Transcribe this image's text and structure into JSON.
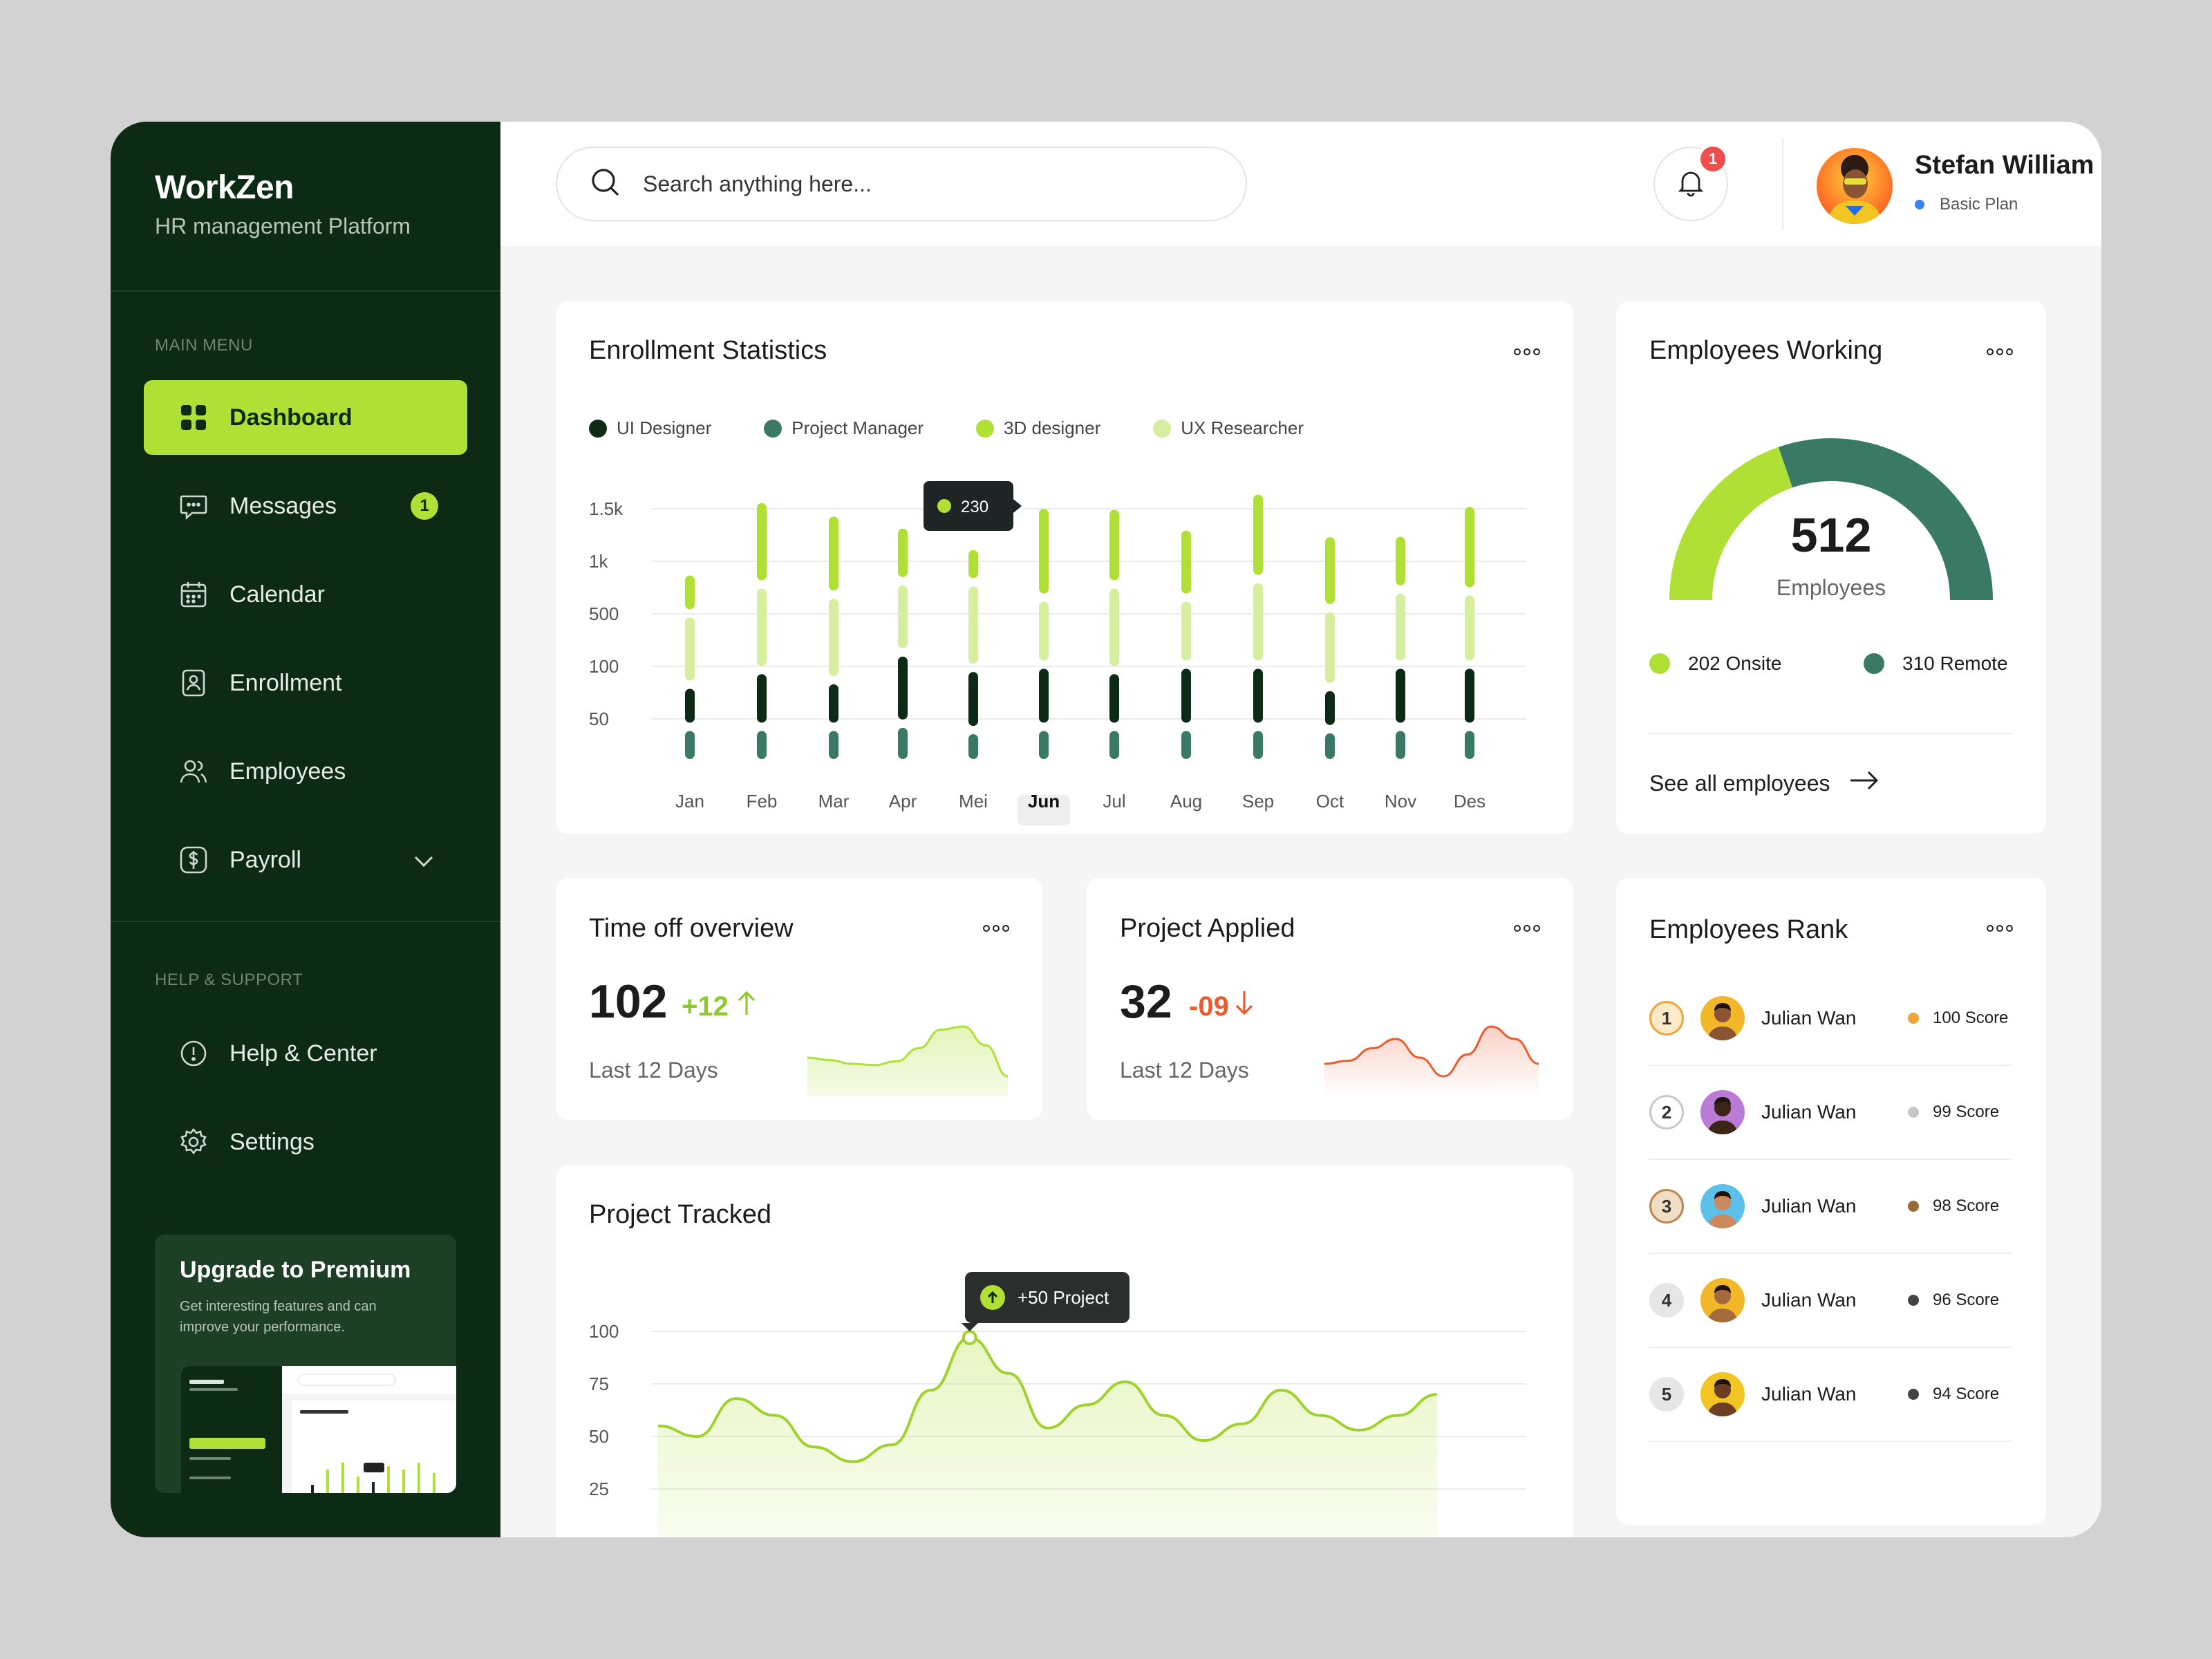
{
  "brand": {
    "title": "WorkZen",
    "subtitle": "HR management Platform"
  },
  "sidebar": {
    "main_menu_label": "MAIN MENU",
    "items": [
      {
        "label": "Dashboard",
        "icon": "grid-icon",
        "active": true
      },
      {
        "label": "Messages",
        "icon": "chat-icon",
        "badge": "1"
      },
      {
        "label": "Calendar",
        "icon": "calendar-icon"
      },
      {
        "label": "Enrollment",
        "icon": "id-badge-icon"
      },
      {
        "label": "Employees",
        "icon": "users-icon"
      },
      {
        "label": "Payroll",
        "icon": "dollar-icon",
        "expandable": true
      }
    ],
    "help_label": "HELP & SUPPORT",
    "help_items": [
      {
        "label": "Help & Center",
        "icon": "info-icon"
      },
      {
        "label": "Settings",
        "icon": "gear-icon"
      }
    ],
    "promo": {
      "title": "Upgrade to Premium",
      "text": "Get interesting features and can improve your performance."
    }
  },
  "header": {
    "search_placeholder": "Search anything here...",
    "notification_count": "1",
    "user": {
      "name": "Stefan William",
      "plan": "Basic Plan"
    }
  },
  "enrollment": {
    "title": "Enrollment Statistics",
    "tooltip": "230",
    "selected_month": "Jun"
  },
  "employees_working": {
    "title": "Employees Working",
    "total": "512",
    "total_label": "Employees",
    "onsite": "202 Onsite",
    "remote": "310 Remote",
    "onsite_value": 202,
    "remote_value": 310,
    "link": "See all employees"
  },
  "time_off": {
    "title": "Time off overview",
    "value": "102",
    "delta": "+12",
    "period": "Last 12 Days"
  },
  "project_applied": {
    "title": "Project Applied",
    "value": "32",
    "delta": "-09",
    "period": "Last 12 Days"
  },
  "project_tracked": {
    "title": "Project Tracked",
    "tooltip": "+50 Project"
  },
  "rank": {
    "title": "Employees Rank",
    "rows": [
      {
        "pos": "1",
        "name": "Julian Wan",
        "score": "100 Score",
        "ring": "#f0a53a",
        "ringbg": "#fdebc8",
        "dot": "#f0a53a"
      },
      {
        "pos": "2",
        "name": "Julian Wan",
        "score": "99 Score",
        "ring": "#c8c8c8",
        "ringbg": "#ffffff",
        "dot": "#c8c8c8"
      },
      {
        "pos": "3",
        "name": "Julian Wan",
        "score": "98 Score",
        "ring": "#b9874f",
        "ringbg": "#f1dcc4",
        "dot": "#9a6a3a"
      },
      {
        "pos": "4",
        "name": "Julian Wan",
        "score": "96 Score",
        "ring": "#e6e6e6",
        "ringbg": "#e6e6e6",
        "dot": "#444444"
      },
      {
        "pos": "5",
        "name": "Julian Wan",
        "score": "94 Score",
        "ring": "#e6e6e6",
        "ringbg": "#e6e6e6",
        "dot": "#444444"
      }
    ]
  },
  "chart_data": [
    {
      "type": "bar",
      "title": "Enrollment Statistics",
      "categories": [
        "Jan",
        "Feb",
        "Mar",
        "Apr",
        "Mei",
        "Jun",
        "Jul",
        "Aug",
        "Sep",
        "Oct",
        "Nov",
        "Des"
      ],
      "y_ticks": [
        "1.5k",
        "1k",
        "500",
        "100",
        "50"
      ],
      "series": [
        {
          "name": "UI Designer",
          "color": "#0d2a14",
          "values": [
            100,
            300,
            150,
            600,
            400,
            400,
            300,
            400,
            400,
            100,
            400,
            400
          ]
        },
        {
          "name": "Project Manager",
          "color": "#3a7a64",
          "values": [
            50,
            50,
            50,
            75,
            30,
            50,
            50,
            50,
            50,
            35,
            50,
            50
          ]
        },
        {
          "name": "3D designer",
          "color": "#b0e035",
          "values": [
            100,
            1000,
            900,
            300,
            50,
            1250,
            800,
            600,
            1100,
            700,
            300,
            1100
          ]
        },
        {
          "name": "UX Researcher",
          "color": "#d6eea0",
          "values": [
            600,
            1000,
            1000,
            600,
            1000,
            500,
            1000,
            500,
            1000,
            800,
            700,
            650
          ]
        }
      ]
    },
    {
      "type": "pie",
      "title": "Employees Working",
      "series": [
        {
          "name": "Onsite",
          "value": 202,
          "color": "#b0e035"
        },
        {
          "name": "Remote",
          "value": 310,
          "color": "#3a7a64"
        }
      ]
    },
    {
      "type": "area",
      "title": "Time off overview",
      "values": [
        0.4,
        0.36,
        0.3,
        0.28,
        0.34,
        0.55,
        0.85,
        0.9,
        0.6,
        0.1
      ]
    },
    {
      "type": "area",
      "title": "Project Applied",
      "values": [
        0.3,
        0.35,
        0.55,
        0.7,
        0.4,
        0.1,
        0.45,
        0.9,
        0.7,
        0.3
      ]
    },
    {
      "type": "line",
      "title": "Project Tracked",
      "y_ticks": [
        "100",
        "75",
        "50",
        "25"
      ],
      "ylim": [
        25,
        100
      ],
      "values": [
        55,
        50,
        68,
        60,
        45,
        38,
        46,
        72,
        97,
        80,
        54,
        65,
        76,
        60,
        48,
        56,
        72,
        60,
        53,
        60,
        70
      ]
    }
  ]
}
